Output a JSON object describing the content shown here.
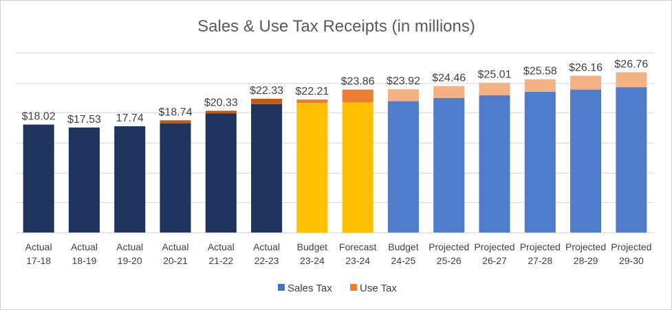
{
  "chart_data": {
    "type": "bar",
    "stacked": true,
    "title": "Sales & Use Tax Receipts (in millions)",
    "xlabel": "",
    "ylabel": "",
    "ylim": [
      0,
      30
    ],
    "grid": true,
    "legend_position": "bottom",
    "categories": [
      [
        "Actual",
        "17-18"
      ],
      [
        "Actual",
        "18-19"
      ],
      [
        "Actual",
        "19-20"
      ],
      [
        "Actual",
        "20-21"
      ],
      [
        "Actual",
        "21-22"
      ],
      [
        "Actual",
        "22-23"
      ],
      [
        "Budget",
        "23-24"
      ],
      [
        "Forecast",
        "23-24"
      ],
      [
        "Budget",
        "24-25"
      ],
      [
        "Projected",
        "25-26"
      ],
      [
        "Projected",
        "26-27"
      ],
      [
        "Projected",
        "27-28"
      ],
      [
        "Projected",
        "28-29"
      ],
      [
        "Projected",
        "29-30"
      ]
    ],
    "series": [
      {
        "name": "Sales Tax",
        "legend_color": "#4472C4",
        "values": [
          18.02,
          17.53,
          17.74,
          18.24,
          19.9,
          21.43,
          21.61,
          21.76,
          21.92,
          22.46,
          22.91,
          23.48,
          23.86,
          24.26
        ],
        "colors": [
          "#1F3560",
          "#1F3560",
          "#1F3560",
          "#1F3560",
          "#1F3560",
          "#1F3560",
          "#FFC000",
          "#FFC000",
          "#4F7CCB",
          "#4F7CCB",
          "#4F7CCB",
          "#4F7CCB",
          "#4F7CCB",
          "#4F7CCB"
        ]
      },
      {
        "name": "Use Tax",
        "legend_color": "#ED7D31",
        "values": [
          0,
          0,
          0,
          0.5,
          0.43,
          0.9,
          0.6,
          2.1,
          2.0,
          2.0,
          2.1,
          2.1,
          2.3,
          2.5
        ],
        "colors": [
          "#C55A11",
          "#C55A11",
          "#C55A11",
          "#C55A11",
          "#C55A11",
          "#C55A11",
          "#ED7D31",
          "#ED7D31",
          "#F4B183",
          "#F4B183",
          "#F4B183",
          "#F4B183",
          "#F4B183",
          "#F4B183"
        ]
      }
    ],
    "total_labels": [
      "$18.02",
      "$17.53",
      "17.74",
      "$18.74",
      "$20.33",
      "$22.33",
      "$22.21",
      "$23.86",
      "$23.92",
      "$24.46",
      "$25.01",
      "$25.58",
      "$26.16",
      "$26.76"
    ]
  }
}
